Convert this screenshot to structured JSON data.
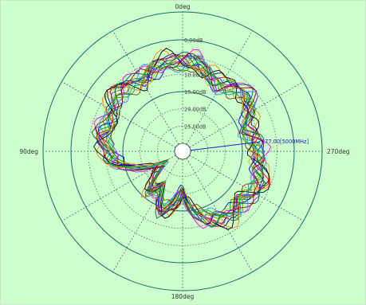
{
  "colors": {
    "background": "#ccffcc",
    "frame": "#c8c8c8",
    "circle": "#1a6b6b",
    "ring": "#666666",
    "spoke": "#3d6f8f",
    "marker": "#2020c0"
  },
  "chart_data": {
    "type": "polar-line",
    "title": "",
    "angle_labels": [
      {
        "deg": 0,
        "text": "0deg"
      },
      {
        "deg": 90,
        "text": "90deg"
      },
      {
        "deg": 180,
        "text": "180deg"
      },
      {
        "deg": 270,
        "text": "270deg"
      }
    ],
    "angle_direction": "counterclockwise",
    "radial_unit": "dB",
    "radial_range": [
      -30,
      0
    ],
    "rings": [
      {
        "value": 0,
        "text": "0.00dB",
        "style": "solid"
      },
      {
        "value": -5,
        "text": "5.00dB",
        "style": "dotted"
      },
      {
        "value": -10,
        "text": "10.00dB",
        "style": "dotted"
      },
      {
        "value": -15,
        "text": "15.00dB",
        "style": "solid"
      },
      {
        "value": -20,
        "text": "20.00dB",
        "style": "dotted"
      },
      {
        "value": -25,
        "text": "25.00dB",
        "style": "dotted"
      }
    ],
    "spokes_every_deg": 30,
    "marker": {
      "text": "277.00[5000MHz]",
      "angle_deg": 277,
      "value_db": -10
    },
    "series_count": 16,
    "series_colors": [
      "#000080",
      "#ff0000",
      "#008000",
      "#0000ff",
      "#ff00ff",
      "#808000",
      "#00a0a0",
      "#804000",
      "#ff8000",
      "#000000",
      "#8000ff",
      "#c0c000",
      "#006060",
      "#a00000",
      "#4080ff",
      "#00c000"
    ],
    "base_profile_db": [
      -6,
      -5,
      -6,
      -8,
      -7,
      -6,
      -8,
      -9,
      -8,
      -10,
      -11,
      -18,
      -24,
      -22,
      -16,
      -20,
      -13,
      -16,
      -19,
      -14,
      -11,
      -9,
      -8,
      -10,
      -8,
      -7,
      -9,
      -10,
      -11,
      -12,
      -9,
      -7,
      -8,
      -9,
      -8,
      -6
    ]
  }
}
